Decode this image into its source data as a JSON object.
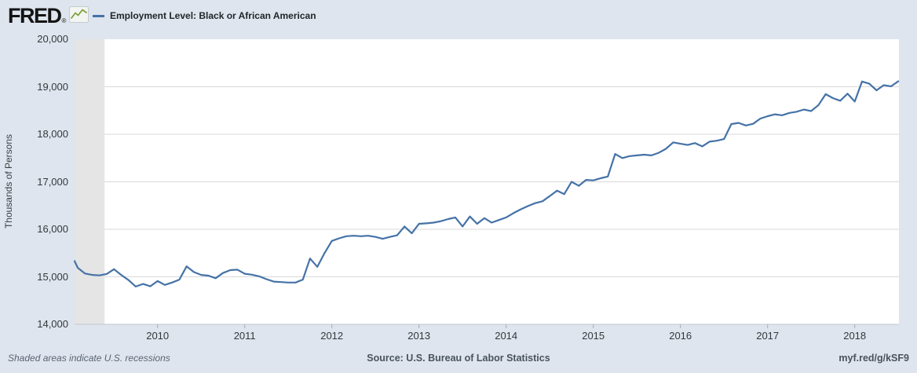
{
  "header": {
    "logo_text": "FRED",
    "registered_mark": "®",
    "legend": {
      "series_label": "Employment Level: Black or African American",
      "swatch_color": "#4572a7"
    }
  },
  "chart_data": {
    "type": "line",
    "title": "Employment Level: Black or African American",
    "ylabel": "Thousands of Persons",
    "ylim": [
      14000,
      20000
    ],
    "yticks": [
      14000,
      15000,
      16000,
      17000,
      18000,
      19000,
      20000
    ],
    "xticks": [
      2010,
      2011,
      2012,
      2013,
      2014,
      2015,
      2016,
      2017,
      2018
    ],
    "x_start": "2009-01",
    "x_end": "2018-07",
    "frequency": "Monthly",
    "grid": "horizontal-only",
    "legend_position": "top-left-header",
    "line_color": "#4572a7",
    "plot_background": "#ffffff",
    "gridline_color": "#d9d9d9",
    "recession_shading": {
      "note": "Shaded areas indicate U.S. recessions",
      "end": "2009-06",
      "color": "#e5e5e5",
      "clipped_at_left_edge": true
    },
    "values": [
      15330,
      15190,
      15070,
      15040,
      15030,
      15060,
      15160,
      15040,
      14930,
      14795,
      14850,
      14800,
      14910,
      14830,
      14880,
      14940,
      15220,
      15100,
      15040,
      15025,
      14970,
      15080,
      15140,
      15150,
      15065,
      15045,
      15010,
      14950,
      14900,
      14890,
      14880,
      14880,
      14940,
      15385,
      15210,
      15500,
      15755,
      15810,
      15855,
      15865,
      15855,
      15865,
      15840,
      15800,
      15840,
      15875,
      16060,
      15915,
      16115,
      16125,
      16140,
      16170,
      16215,
      16250,
      16060,
      16270,
      16115,
      16235,
      16140,
      16195,
      16250,
      16340,
      16420,
      16490,
      16550,
      16590,
      16700,
      16815,
      16740,
      17000,
      16915,
      17040,
      17030,
      17075,
      17110,
      17585,
      17500,
      17540,
      17555,
      17570,
      17555,
      17610,
      17695,
      17830,
      17800,
      17775,
      17815,
      17745,
      17845,
      17865,
      17900,
      18215,
      18240,
      18185,
      18220,
      18330,
      18380,
      18420,
      18400,
      18450,
      18475,
      18520,
      18490,
      18615,
      18845,
      18760,
      18705,
      18855,
      18690,
      19110,
      19065,
      18925,
      19035,
      19010,
      19115
    ]
  },
  "footer": {
    "note": "Shaded areas indicate U.S. recessions",
    "source": "Source: U.S. Bureau of Labor Statistics",
    "link": "myf.red/g/kSF9"
  }
}
